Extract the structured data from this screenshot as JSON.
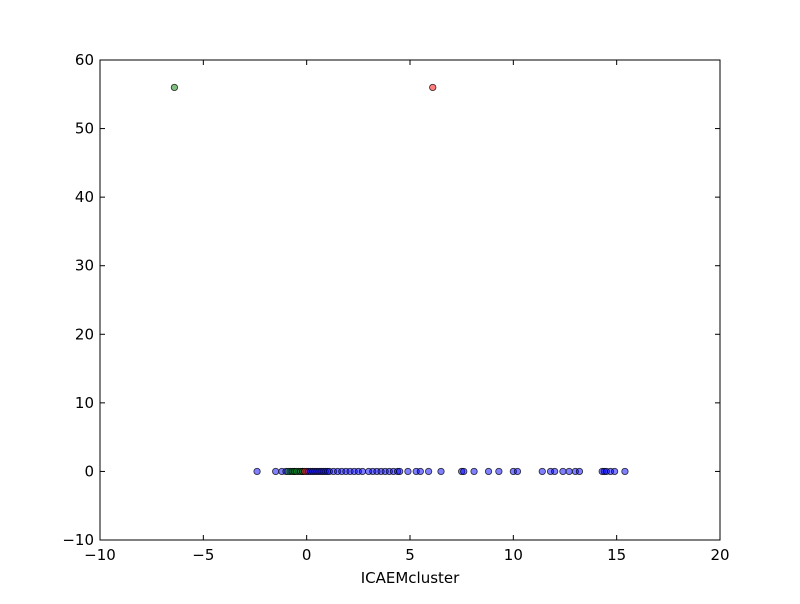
{
  "chart_data": {
    "type": "scatter",
    "title": "",
    "xlabel": "ICAEMcluster",
    "ylabel": "",
    "xlim": [
      -10,
      20
    ],
    "ylim": [
      -10,
      60
    ],
    "xticks": [
      -10,
      -5,
      0,
      5,
      10,
      15,
      20
    ],
    "yticks": [
      -10,
      0,
      10,
      20,
      30,
      40,
      50,
      60
    ],
    "xtick_labels": [
      "−10",
      "−5",
      "0",
      "5",
      "10",
      "15",
      "20"
    ],
    "ytick_labels": [
      "−10",
      "0",
      "10",
      "20",
      "30",
      "40",
      "50",
      "60"
    ],
    "grid": false,
    "legend": "none",
    "series": [
      {
        "color": "#0000ff",
        "x": [
          -2.4,
          -1.5,
          -1.2,
          -1.0,
          -0.8,
          -0.6,
          -0.4,
          -0.2,
          0.0,
          0.1,
          0.2,
          0.3,
          0.4,
          0.5,
          0.6,
          0.7,
          0.8,
          0.9,
          1.0,
          1.1,
          1.3,
          1.5,
          1.7,
          1.9,
          2.1,
          2.3,
          2.5,
          2.7,
          3.0,
          3.2,
          3.4,
          3.6,
          3.8,
          4.0,
          4.2,
          4.4,
          4.5,
          4.9,
          5.3,
          5.5,
          5.9,
          6.5,
          7.5,
          7.6,
          8.1,
          8.8,
          9.3,
          10.0,
          10.2,
          11.4,
          11.8,
          12.0,
          12.4,
          12.7,
          13.0,
          13.2,
          14.3,
          14.4,
          14.5,
          14.7,
          14.9,
          15.4
        ],
        "y": [
          0,
          0,
          0,
          0,
          0,
          0,
          0,
          0,
          0,
          0,
          0,
          0,
          0,
          0,
          0,
          0,
          0,
          0,
          0,
          0,
          0,
          0,
          0,
          0,
          0,
          0,
          0,
          0,
          0,
          0,
          0,
          0,
          0,
          0,
          0,
          0,
          0,
          0,
          0,
          0,
          0,
          0,
          0,
          0,
          0,
          0,
          0,
          0,
          0,
          0,
          0,
          0,
          0,
          0,
          0,
          0,
          0,
          0,
          0,
          0,
          0,
          0
        ]
      },
      {
        "color": "#008000",
        "x": [
          -6.4,
          -0.9,
          -0.7,
          -0.6,
          -0.5,
          -0.3,
          -0.2
        ],
        "y": [
          56,
          0,
          0,
          0,
          0,
          0,
          0
        ]
      },
      {
        "color": "#ff0000",
        "x": [
          6.1,
          -0.1
        ],
        "y": [
          56,
          0
        ]
      }
    ]
  }
}
